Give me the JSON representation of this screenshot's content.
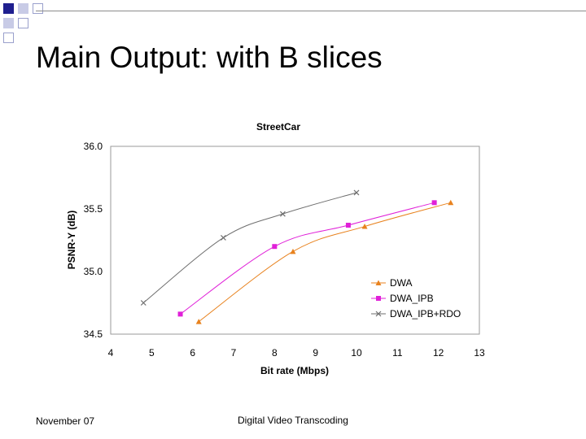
{
  "slide": {
    "title": "Main Output: with B slices",
    "footer_left": "November 07",
    "footer_center": "Digital Video Transcoding"
  },
  "colors": {
    "title_squares": "#1f1f8f",
    "title_squares_light": "#c8cbe6",
    "DWA": "#e8821e",
    "DWA_IPB": "#e020d8",
    "DWA_IPB_RDO": "#6e6e6e"
  },
  "chart_data": {
    "type": "line",
    "title": "StreetCar",
    "xlabel": "Bit rate (Mbps)",
    "ylabel": "PSNR-Y (dB)",
    "xlim": [
      4,
      13
    ],
    "ylim": [
      34.5,
      36.0
    ],
    "x_ticks": [
      "4",
      "5",
      "6",
      "7",
      "8",
      "9",
      "10",
      "11",
      "12",
      "13"
    ],
    "y_ticks": [
      "34.5",
      "35.0",
      "35.5",
      "36.0"
    ],
    "grid": false,
    "legend_position": "bottom-right",
    "series": [
      {
        "name": "DWA",
        "marker": "triangle",
        "x": [
          6.15,
          8.45,
          10.2,
          12.3
        ],
        "y": [
          34.6,
          35.16,
          35.36,
          35.55
        ]
      },
      {
        "name": "DWA_IPB",
        "marker": "square",
        "x": [
          5.7,
          8.0,
          9.8,
          11.9
        ],
        "y": [
          34.66,
          35.2,
          35.37,
          35.55
        ]
      },
      {
        "name": "DWA_IPB+RDO",
        "marker": "x",
        "x": [
          4.8,
          6.75,
          8.2,
          10.0
        ],
        "y": [
          34.75,
          35.27,
          35.46,
          35.63
        ]
      }
    ]
  }
}
